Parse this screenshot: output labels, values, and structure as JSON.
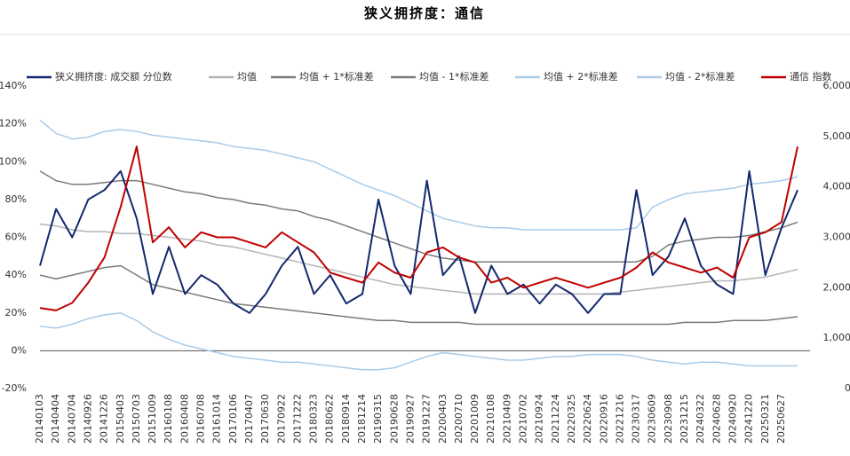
{
  "chart_data": {
    "type": "line",
    "title": "狭义拥挤度：通信",
    "categories": [
      "20140103",
      "20140404",
      "20140704",
      "20140926",
      "20141226",
      "20150403",
      "20150703",
      "20151009",
      "20160108",
      "20160408",
      "20160708",
      "20161014",
      "20170106",
      "20170407",
      "20170630",
      "20170922",
      "20171222",
      "20180323",
      "20180622",
      "20180914",
      "20181214",
      "20190315",
      "20190628",
      "20190927",
      "20191227",
      "20200403",
      "20200710",
      "20201009",
      "20210108",
      "20210409",
      "20210702",
      "20210924",
      "20211224",
      "20220325",
      "20220624",
      "20220916",
      "20221216",
      "20230317",
      "20230609",
      "20230908",
      "20231215",
      "20240322",
      "20240628",
      "20240920",
      "20241220",
      "20250321",
      "20250627",
      null
    ],
    "series": [
      {
        "name": "狭义拥挤度: 成交额 分位数",
        "color": "#14286e",
        "width": 2,
        "values": [
          45,
          75,
          60,
          80,
          85,
          95,
          70,
          30,
          55,
          30,
          40,
          35,
          25,
          20,
          30,
          45,
          55,
          30,
          40,
          25,
          30,
          80,
          45,
          30,
          90,
          40,
          50,
          20,
          45,
          30,
          35,
          25,
          35,
          30,
          20,
          30,
          30,
          85,
          40,
          50,
          70,
          45,
          35,
          30,
          95,
          40,
          65,
          85
        ]
      },
      {
        "name": "均值",
        "color": "#b4b4b4",
        "width": 1.5,
        "values": [
          67,
          66,
          64,
          63,
          63,
          62,
          62,
          61,
          60,
          59,
          58,
          56,
          55,
          53,
          51,
          49,
          47,
          45,
          43,
          41,
          39,
          37,
          35,
          34,
          33,
          32,
          31,
          30,
          30,
          30,
          30,
          30,
          30,
          30,
          30,
          30,
          31,
          32,
          33,
          34,
          35,
          36,
          37,
          37,
          38,
          39,
          41,
          43
        ]
      },
      {
        "name": "均值 + 1*标准差",
        "color": "#7a7a7a",
        "width": 1.5,
        "values": [
          95,
          90,
          88,
          88,
          89,
          90,
          90,
          88,
          86,
          84,
          83,
          81,
          80,
          78,
          77,
          75,
          74,
          71,
          69,
          66,
          63,
          60,
          57,
          54,
          51,
          49,
          48,
          47,
          47,
          47,
          47,
          47,
          47,
          47,
          47,
          47,
          47,
          47,
          50,
          56,
          58,
          59,
          60,
          60,
          61,
          63,
          65,
          68
        ]
      },
      {
        "name": "均值 - 1*标准差",
        "color": "#7a7a7a",
        "width": 1.5,
        "values": [
          40,
          38,
          40,
          42,
          44,
          45,
          40,
          35,
          33,
          31,
          29,
          27,
          25,
          24,
          23,
          22,
          21,
          20,
          19,
          18,
          17,
          16,
          16,
          15,
          15,
          15,
          15,
          14,
          14,
          14,
          14,
          14,
          14,
          14,
          14,
          14,
          14,
          14,
          14,
          14,
          15,
          15,
          15,
          16,
          16,
          16,
          17,
          18
        ]
      },
      {
        "name": "均值 + 2*标准差",
        "color": "#a9cbe8",
        "width": 1.5,
        "values": [
          122,
          115,
          112,
          113,
          116,
          117,
          116,
          114,
          113,
          112,
          111,
          110,
          108,
          107,
          106,
          104,
          102,
          100,
          96,
          92,
          88,
          85,
          82,
          78,
          74,
          70,
          68,
          66,
          65,
          65,
          64,
          64,
          64,
          64,
          64,
          64,
          64,
          65,
          76,
          80,
          83,
          84,
          85,
          86,
          88,
          89,
          90,
          92
        ]
      },
      {
        "name": "均值 - 2*标准差",
        "color": "#a9cbe8",
        "width": 1.5,
        "values": [
          13,
          12,
          14,
          17,
          19,
          20,
          16,
          10,
          6,
          3,
          1,
          -1,
          -3,
          -4,
          -5,
          -6,
          -6,
          -7,
          -8,
          -9,
          -10,
          -10,
          -9,
          -6,
          -3,
          -1,
          -2,
          -3,
          -4,
          -5,
          -5,
          -4,
          -3,
          -3,
          -2,
          -2,
          -2,
          -3,
          -5,
          -6,
          -7,
          -6,
          -6,
          -7,
          -8,
          -8,
          -8,
          -8
        ]
      },
      {
        "name": "通信 指数",
        "color": "#c00000",
        "width": 2,
        "axis": "y2",
        "values": [
          1600,
          1550,
          1700,
          2100,
          2600,
          3600,
          4800,
          2900,
          3200,
          2800,
          3100,
          3000,
          3000,
          2900,
          2800,
          3100,
          2900,
          2700,
          2300,
          2200,
          2100,
          2500,
          2300,
          2200,
          2700,
          2800,
          2600,
          2500,
          2100,
          2200,
          2000,
          2100,
          2200,
          2100,
          2000,
          2100,
          2200,
          2400,
          2700,
          2500,
          2400,
          2300,
          2400,
          2200,
          3000,
          3100,
          3300,
          4800
        ]
      }
    ],
    "ylim": [
      -20,
      140
    ],
    "yticks": [
      {
        "value": 140,
        "label": "140%"
      },
      {
        "value": 120,
        "label": "120%"
      },
      {
        "value": 100,
        "label": "100%"
      },
      {
        "value": 80,
        "label": "80%"
      },
      {
        "value": 60,
        "label": "60%"
      },
      {
        "value": 40,
        "label": "40%"
      },
      {
        "value": 20,
        "label": "20%"
      },
      {
        "value": 0,
        "label": "0%"
      },
      {
        "value": -20,
        "label": "-20%"
      }
    ],
    "y2lim": [
      0,
      6000
    ],
    "y2ticks": [
      0,
      {
        "value": 1000,
        "label": "1,000"
      },
      {
        "value": 2000,
        "label": "2,000"
      },
      {
        "value": 3000,
        "label": "3,000"
      },
      {
        "value": 4000,
        "label": "4,000"
      },
      {
        "value": 5000,
        "label": "5,000"
      },
      {
        "value": 6000,
        "label": "6,000"
      }
    ],
    "grid": false,
    "legend": "top"
  }
}
